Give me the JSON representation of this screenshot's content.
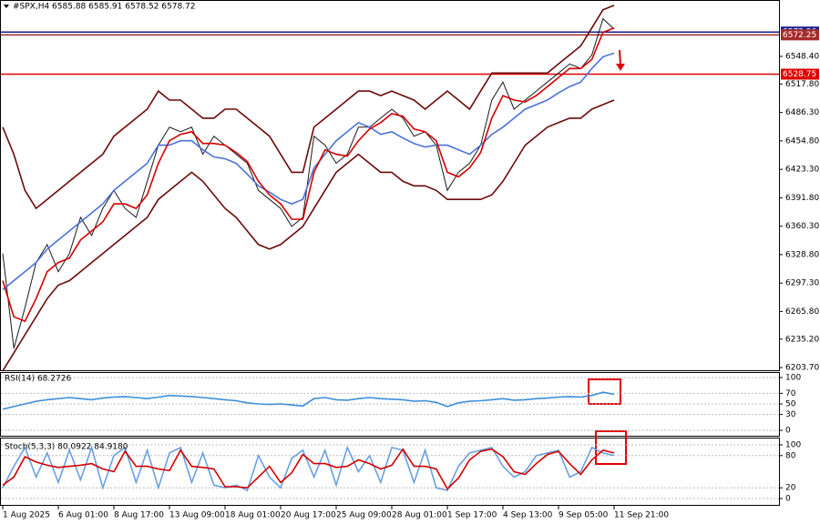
{
  "chart_data": [
    {
      "type": "line",
      "title": "#SPX,H4  6585.88 6585.91 6578.52 6578.72",
      "categories": [
        "1 Aug 2025",
        null,
        null,
        null,
        null,
        "6 Aug 01:00",
        null,
        null,
        null,
        null,
        "8 Aug 17:00",
        null,
        null,
        null,
        null,
        "13 Aug 09:00",
        null,
        null,
        null,
        null,
        "18 Aug 01:00",
        null,
        null,
        null,
        null,
        "20 Aug 17:00",
        null,
        null,
        null,
        null,
        "25 Aug 09:00",
        null,
        null,
        null,
        null,
        "28 Aug 01:00",
        null,
        null,
        null,
        null,
        "1 Sep 17:00",
        null,
        null,
        null,
        null,
        "4 Sep 13:00",
        null,
        null,
        null,
        null,
        "9 Sep 05:00",
        null,
        null,
        null,
        null,
        "11 Sep 21:00"
      ],
      "series": [
        {
          "color": "#1a1a1a",
          "values": [
            6330,
            6225,
            6270,
            6320,
            6340,
            6310,
            6330,
            6370,
            6350,
            6380,
            6400,
            6380,
            6370,
            6410,
            6450,
            6470,
            6465,
            6470,
            6440,
            6460,
            6450,
            6440,
            6430,
            6400,
            6390,
            6380,
            6360,
            6370,
            6460,
            6450,
            6430,
            6440,
            6470,
            6470,
            6480,
            6490,
            6480,
            6460,
            6465,
            6450,
            6400,
            6420,
            6430,
            6450,
            6500,
            6520,
            6490,
            6500,
            6510,
            6520,
            6530,
            6540,
            6535,
            6550,
            6590,
            6578.72
          ]
        },
        {
          "color": "#6b0a0a",
          "values": [
            6470,
            6440,
            6400,
            6380,
            6390,
            6400,
            6410,
            6420,
            6430,
            6440,
            6460,
            6470,
            6480,
            6490,
            6510,
            6500,
            6500,
            6490,
            6480,
            6480,
            6490,
            6490,
            6480,
            6470,
            6460,
            6440,
            6420,
            6420,
            6470,
            6480,
            6490,
            6500,
            6510,
            6510,
            6505,
            6510,
            6505,
            6500,
            6490,
            6500,
            6510,
            6500,
            6490,
            6510,
            6530,
            6530,
            6530,
            6530,
            6530,
            6530,
            6540,
            6550,
            6560,
            6580,
            6600,
            6605
          ]
        },
        {
          "color": "#6b0a0a",
          "values": [
            6200,
            6220,
            6240,
            6260,
            6280,
            6295,
            6300,
            6310,
            6320,
            6330,
            6340,
            6350,
            6360,
            6370,
            6390,
            6400,
            6410,
            6420,
            6410,
            6395,
            6380,
            6370,
            6355,
            6340,
            6335,
            6340,
            6350,
            6360,
            6380,
            6400,
            6420,
            6430,
            6440,
            6430,
            6420,
            6420,
            6410,
            6405,
            6405,
            6400,
            6390,
            6390,
            6390,
            6390,
            6395,
            6410,
            6430,
            6450,
            6460,
            6470,
            6475,
            6480,
            6480,
            6490,
            6495,
            6500
          ]
        },
        {
          "color": "#4a72d8",
          "values": [
            6290,
            6300,
            6310,
            6320,
            6335,
            6345,
            6355,
            6365,
            6375,
            6385,
            6400,
            6410,
            6420,
            6430,
            6450,
            6450,
            6455,
            6455,
            6445,
            6437,
            6435,
            6430,
            6418,
            6405,
            6398,
            6390,
            6385,
            6390,
            6425,
            6440,
            6455,
            6465,
            6475,
            6470,
            6462,
            6465,
            6458,
            6452,
            6448,
            6450,
            6450,
            6445,
            6440,
            6450,
            6462,
            6470,
            6480,
            6490,
            6495,
            6500,
            6508,
            6515,
            6520,
            6535,
            6548,
            6552
          ]
        },
        {
          "color": "#d40000",
          "values": [
            6300,
            6260,
            6255,
            6280,
            6310,
            6320,
            6325,
            6345,
            6355,
            6365,
            6385,
            6385,
            6380,
            6395,
            6430,
            6455,
            6462,
            6465,
            6452,
            6452,
            6450,
            6442,
            6432,
            6410,
            6395,
            6385,
            6368,
            6368,
            6420,
            6445,
            6440,
            6438,
            6455,
            6468,
            6475,
            6485,
            6482,
            6468,
            6465,
            6455,
            6420,
            6415,
            6425,
            6442,
            6480,
            6505,
            6500,
            6498,
            6505,
            6515,
            6525,
            6535,
            6535,
            6545,
            6575,
            6580
          ]
        }
      ],
      "ylim": [
        6199.7,
        6610.9
      ],
      "yticks": [
        {
          "value": 6203.7,
          "label": "6203.70"
        },
        {
          "value": 6235.2,
          "label": "6235.20"
        },
        {
          "value": 6265.8,
          "label": "6265.80"
        },
        {
          "value": 6297.3,
          "label": "6297.30"
        },
        {
          "value": 6328.8,
          "label": "6328.80"
        },
        {
          "value": 6360.3,
          "label": "6360.30"
        },
        {
          "value": 6391.8,
          "label": "6391.80"
        },
        {
          "value": 6423.3,
          "label": "6423.30"
        },
        {
          "value": 6454.8,
          "label": "6454.80"
        },
        {
          "value": 6486.3,
          "label": "6486.30"
        },
        {
          "value": 6517.8,
          "label": "6517.80"
        },
        {
          "value": 6548.4,
          "label": "6548.40"
        }
      ],
      "hlines": [
        {
          "value": 6575.4,
          "color": "#1c1c8c",
          "tag": "6572.96"
        },
        {
          "value": 6572.25,
          "color": "#a52a2a"
        },
        {
          "value": 6528.75,
          "color": "#e00000"
        }
      ]
    },
    {
      "type": "line",
      "title": "RSI(14) 68.2726",
      "series": [
        {
          "color": "#3d8fd9",
          "values": [
            40,
            45,
            50,
            55,
            58,
            60,
            62,
            60,
            58,
            61,
            63,
            64,
            62,
            60,
            63,
            66,
            65,
            64,
            62,
            60,
            58,
            56,
            52,
            50,
            49,
            50,
            48,
            46,
            60,
            62,
            58,
            57,
            60,
            62,
            60,
            59,
            58,
            55,
            56,
            53,
            45,
            52,
            55,
            56,
            58,
            60,
            57,
            58,
            60,
            61,
            63,
            64,
            63,
            66,
            72,
            68.2726
          ]
        }
      ],
      "ylim": [
        0,
        100
      ],
      "yticks": [
        0,
        30,
        50,
        70,
        100
      ]
    },
    {
      "type": "line",
      "title": "Stoch(5,3,3) 80.0922 84.9180",
      "series": [
        {
          "color": "#6aa0e0",
          "values": [
            20,
            60,
            95,
            40,
            85,
            30,
            90,
            35,
            95,
            20,
            80,
            95,
            30,
            90,
            20,
            85,
            95,
            30,
            85,
            25,
            20,
            25,
            15,
            80,
            40,
            20,
            75,
            90,
            40,
            90,
            25,
            95,
            50,
            80,
            30,
            95,
            90,
            30,
            90,
            20,
            15,
            60,
            85,
            90,
            95,
            60,
            40,
            50,
            80,
            85,
            90,
            40,
            50,
            95,
            85,
            80.0922
          ]
        },
        {
          "color": "#d40000",
          "values": [
            25,
            40,
            78,
            68,
            62,
            58,
            60,
            62,
            65,
            55,
            50,
            88,
            60,
            60,
            55,
            52,
            90,
            60,
            58,
            55,
            22,
            22,
            20,
            40,
            60,
            30,
            48,
            82,
            65,
            65,
            58,
            60,
            72,
            65,
            55,
            62,
            92,
            60,
            60,
            55,
            18,
            38,
            72,
            88,
            92,
            78,
            50,
            45,
            65,
            82,
            88,
            65,
            45,
            72,
            90,
            84.918
          ]
        }
      ],
      "ylim": [
        0,
        100
      ],
      "yticks": [
        0,
        20,
        80,
        100
      ]
    }
  ]
}
